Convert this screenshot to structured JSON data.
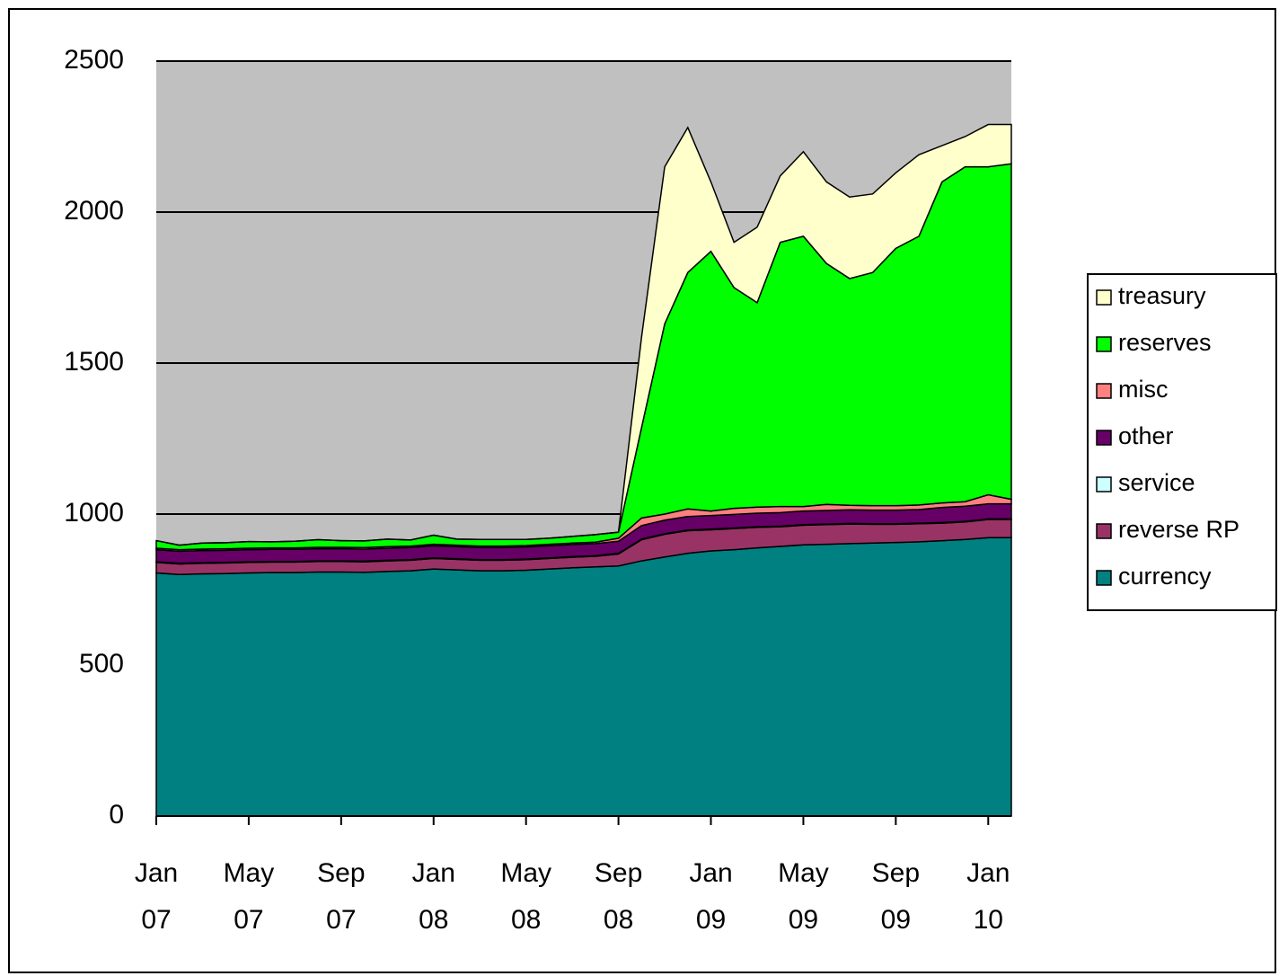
{
  "chart_data": {
    "type": "stacked_area",
    "x": [
      "2007-01",
      "2007-02",
      "2007-03",
      "2007-04",
      "2007-05",
      "2007-06",
      "2007-07",
      "2007-08",
      "2007-09",
      "2007-10",
      "2007-11",
      "2007-12",
      "2008-01",
      "2008-02",
      "2008-03",
      "2008-04",
      "2008-05",
      "2008-06",
      "2008-07",
      "2008-08",
      "2008-09",
      "2008-10",
      "2008-11",
      "2008-12",
      "2009-01",
      "2009-02",
      "2009-03",
      "2009-04",
      "2009-05",
      "2009-06",
      "2009-07",
      "2009-08",
      "2009-09",
      "2009-10",
      "2009-11",
      "2009-12",
      "2010-01",
      "2010-02"
    ],
    "series": [
      {
        "name": "currency",
        "color": "#008080",
        "values": [
          805,
          800,
          802,
          803,
          805,
          806,
          806,
          808,
          808,
          807,
          810,
          812,
          818,
          815,
          812,
          812,
          814,
          818,
          822,
          825,
          828,
          845,
          858,
          870,
          878,
          882,
          888,
          893,
          898,
          900,
          902,
          904,
          906,
          908,
          912,
          916,
          922,
          922
        ]
      },
      {
        "name": "reverse RP",
        "color": "#993366",
        "values": [
          35,
          35,
          35,
          35,
          35,
          35,
          35,
          35,
          35,
          35,
          35,
          35,
          35,
          35,
          35,
          35,
          35,
          35,
          35,
          35,
          40,
          70,
          75,
          75,
          70,
          70,
          68,
          65,
          65,
          65,
          65,
          62,
          60,
          60,
          58,
          58,
          60,
          60
        ]
      },
      {
        "name": "service",
        "color": "#ccffff",
        "values": [
          2,
          2,
          2,
          2,
          2,
          2,
          2,
          2,
          2,
          2,
          2,
          2,
          2,
          2,
          2,
          2,
          2,
          2,
          2,
          2,
          2,
          2,
          2,
          2,
          2,
          2,
          2,
          2,
          2,
          2,
          2,
          2,
          2,
          2,
          2,
          2,
          2,
          2
        ]
      },
      {
        "name": "other",
        "color": "#660066",
        "values": [
          40,
          40,
          40,
          40,
          40,
          40,
          40,
          40,
          40,
          40,
          40,
          40,
          40,
          40,
          40,
          40,
          40,
          40,
          40,
          40,
          40,
          45,
          45,
          45,
          45,
          45,
          45,
          45,
          45,
          45,
          45,
          45,
          45,
          45,
          50,
          50,
          50,
          50
        ]
      },
      {
        "name": "misc",
        "color": "#ff8080",
        "values": [
          5,
          5,
          5,
          5,
          5,
          5,
          5,
          5,
          5,
          5,
          5,
          5,
          5,
          5,
          5,
          5,
          5,
          5,
          5,
          5,
          10,
          25,
          20,
          25,
          15,
          20,
          20,
          20,
          15,
          20,
          15,
          15,
          15,
          15,
          15,
          15,
          30,
          15
        ]
      },
      {
        "name": "reserves",
        "color": "#00ff00",
        "values": [
          25,
          15,
          20,
          20,
          22,
          20,
          22,
          25,
          22,
          22,
          25,
          20,
          30,
          20,
          22,
          22,
          20,
          20,
          22,
          25,
          20,
          300,
          630,
          783,
          860,
          731,
          677,
          875,
          895,
          798,
          751,
          772,
          852,
          890,
          1063,
          1109,
          1086,
          1111
        ]
      },
      {
        "name": "treasury",
        "color": "#ffffcc",
        "values": [
          0,
          0,
          0,
          0,
          0,
          0,
          0,
          0,
          0,
          0,
          0,
          0,
          0,
          0,
          0,
          0,
          0,
          0,
          0,
          0,
          0,
          300,
          520,
          480,
          230,
          150,
          250,
          220,
          280,
          270,
          270,
          260,
          250,
          270,
          120,
          100,
          140,
          130
        ]
      }
    ],
    "xlim": [
      "2007-01",
      "2010-02"
    ],
    "xticks": [
      {
        "value": "2007-01",
        "label": "Jan 07"
      },
      {
        "value": "2007-05",
        "label": "May 07"
      },
      {
        "value": "2007-09",
        "label": "Sep 07"
      },
      {
        "value": "2008-01",
        "label": "Jan 08"
      },
      {
        "value": "2008-05",
        "label": "May 08"
      },
      {
        "value": "2008-09",
        "label": "Sep 08"
      },
      {
        "value": "2009-01",
        "label": "Jan 09"
      },
      {
        "value": "2009-05",
        "label": "May 09"
      },
      {
        "value": "2009-09",
        "label": "Sep 09"
      },
      {
        "value": "2010-01",
        "label": "Jan 10"
      }
    ],
    "ylim": [
      0,
      2500
    ],
    "yticks": [
      0,
      500,
      1000,
      1500,
      2000,
      2500
    ],
    "grid": true,
    "legend": "right",
    "plot_background": "#c0c0c0"
  }
}
